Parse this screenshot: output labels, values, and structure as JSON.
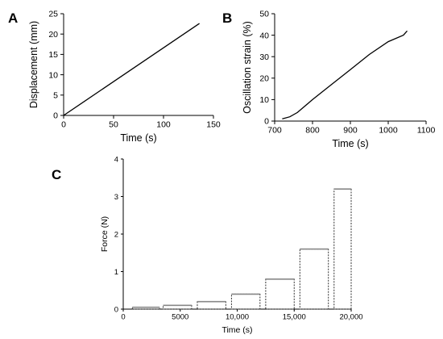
{
  "chart_data": [
    {
      "panel": "A",
      "type": "line",
      "xlabel": "Time (s)",
      "ylabel": "Displacement (mm)",
      "xlim": [
        0,
        150
      ],
      "ylim": [
        0,
        25
      ],
      "xticks": [
        "0",
        "50",
        "100",
        "150"
      ],
      "yticks": [
        "0",
        "5",
        "10",
        "15",
        "20",
        "25"
      ],
      "grid": false,
      "series": [
        {
          "x": [
            0,
            136
          ],
          "y": [
            0,
            22.6
          ]
        }
      ]
    },
    {
      "panel": "B",
      "type": "line",
      "xlabel": "Time (s)",
      "ylabel": "Oscillation strain (%)",
      "xlim": [
        700,
        1100
      ],
      "ylim": [
        0,
        50
      ],
      "xticks": [
        "700",
        "800",
        "900",
        "1000",
        "1100"
      ],
      "yticks": [
        "0",
        "10",
        "20",
        "30",
        "40",
        "50"
      ],
      "grid": false,
      "series": [
        {
          "x": [
            720,
            740,
            760,
            800,
            850,
            900,
            950,
            1000,
            1040,
            1050
          ],
          "y": [
            1,
            2,
            4,
            10,
            17,
            24,
            31,
            37,
            40,
            42
          ]
        }
      ]
    },
    {
      "panel": "C",
      "type": "bar",
      "xlabel": "Time (s)",
      "ylabel": "Force (N)",
      "xlim": [
        0,
        20000
      ],
      "ylim": [
        0,
        4
      ],
      "xticks": [
        "0",
        "5000",
        "10,000",
        "15,000",
        "20,000"
      ],
      "yticks": [
        "0",
        "1",
        "2",
        "3",
        "4"
      ],
      "grid": false,
      "bars": [
        {
          "x_start": 800,
          "x_end": 3200,
          "value": 0.05
        },
        {
          "x_start": 3500,
          "x_end": 6000,
          "value": 0.1
        },
        {
          "x_start": 6500,
          "x_end": 9000,
          "value": 0.2
        },
        {
          "x_start": 9500,
          "x_end": 12000,
          "value": 0.4
        },
        {
          "x_start": 12500,
          "x_end": 15000,
          "value": 0.8
        },
        {
          "x_start": 15500,
          "x_end": 18000,
          "value": 1.6
        },
        {
          "x_start": 18500,
          "x_end": 21000,
          "value": 3.2
        }
      ]
    }
  ]
}
